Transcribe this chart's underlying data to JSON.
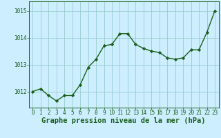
{
  "x": [
    0,
    1,
    2,
    3,
    4,
    5,
    6,
    7,
    8,
    9,
    10,
    11,
    12,
    13,
    14,
    15,
    16,
    17,
    18,
    19,
    20,
    21,
    22,
    23
  ],
  "y": [
    1012.0,
    1012.1,
    1011.85,
    1011.65,
    1011.85,
    1011.85,
    1012.25,
    1012.9,
    1013.2,
    1013.7,
    1013.75,
    1014.15,
    1014.15,
    1013.75,
    1013.6,
    1013.5,
    1013.45,
    1013.25,
    1013.2,
    1013.25,
    1013.55,
    1013.55,
    1014.2,
    1015.0
  ],
  "line_color": "#1a5e1a",
  "marker": "D",
  "markersize": 2.2,
  "linewidth": 1.0,
  "bg_color": "#cceeff",
  "grid_color": "#99cccc",
  "xlabel": "Graphe pression niveau de la mer (hPa)",
  "xlabel_fontsize": 7.5,
  "xlabel_color": "#1a5e1a",
  "yticks": [
    1012,
    1013,
    1014,
    1015
  ],
  "xticks": [
    0,
    1,
    2,
    3,
    4,
    5,
    6,
    7,
    8,
    9,
    10,
    11,
    12,
    13,
    14,
    15,
    16,
    17,
    18,
    19,
    20,
    21,
    22,
    23
  ],
  "ylim": [
    1011.4,
    1015.35
  ],
  "xlim": [
    -0.5,
    23.5
  ],
  "tick_fontsize": 5.5,
  "tick_color": "#1a5e1a"
}
